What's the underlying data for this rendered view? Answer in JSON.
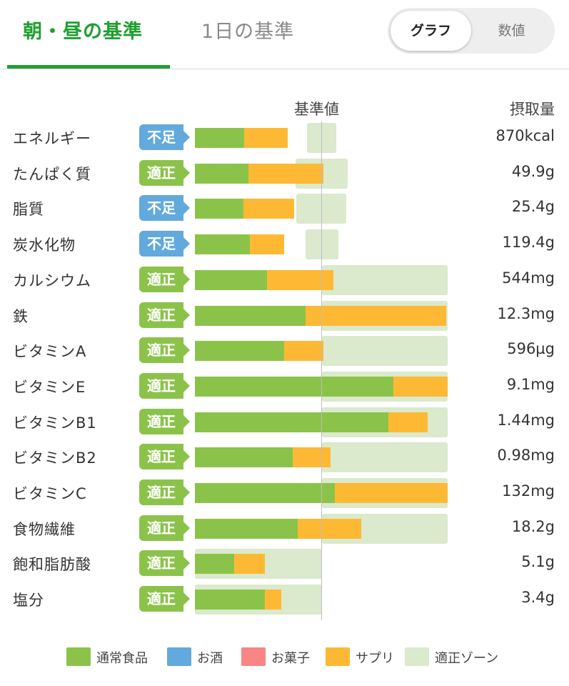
{
  "tabs": [
    {
      "label": "朝・昼の基準",
      "active": true
    },
    {
      "label": "1日の基準",
      "active": false
    }
  ],
  "toggle": {
    "on_label": "グラフ",
    "off_label": "数値"
  },
  "header": {
    "standard_label": "基準値",
    "intake_label": "摂取量"
  },
  "colors": {
    "normal_food": "#8bc34a",
    "alcohol": "#62a9dd",
    "sweets": "#f98585",
    "supplement": "#fdb933",
    "proper_zone": "#dbe9cc",
    "badge_ok": "#8bc34a",
    "badge_low": "#62a9dd"
  },
  "chart_data": {
    "type": "bar",
    "stacked": true,
    "series": [
      {
        "name": "通常食品",
        "values": [
          0.39,
          0.42,
          0.38,
          0.43,
          0.57,
          0.87,
          0.7,
          1.56,
          1.52,
          0.77,
          1.1,
          0.81,
          0.31,
          0.55
        ]
      },
      {
        "name": "サプリ",
        "values": [
          0.34,
          0.59,
          0.4,
          0.27,
          0.52,
          1.11,
          0.31,
          0.43,
          0.31,
          0.3,
          0.89,
          0.5,
          0.24,
          0.13
        ]
      }
    ],
    "zones": [
      [
        0.88,
        1.11
      ],
      [
        0.79,
        1.2
      ],
      [
        0.8,
        1.19
      ],
      [
        0.87,
        1.13
      ],
      [
        1.0,
        2.0
      ],
      [
        1.0,
        2.0
      ],
      [
        1.0,
        2.0
      ],
      [
        1.0,
        2.0
      ],
      [
        1.0,
        2.0
      ],
      [
        1.0,
        2.0
      ],
      [
        1.0,
        2.0
      ],
      [
        1.0,
        2.0
      ],
      [
        0,
        1.0
      ],
      [
        0,
        1.0
      ]
    ],
    "legend": [
      "通常食品",
      "お酒",
      "お菓子",
      "サプリ",
      "適正ゾーン"
    ],
    "legend_position": "bottom"
  },
  "nutrients": [
    {
      "name": "エネルギー",
      "status": "不足",
      "status_type": "low",
      "value": "870kcal"
    },
    {
      "name": "たんぱく質",
      "status": "適正",
      "status_type": "ok",
      "value": "49.9g"
    },
    {
      "name": "脂質",
      "status": "不足",
      "status_type": "low",
      "value": "25.4g"
    },
    {
      "name": "炭水化物",
      "status": "不足",
      "status_type": "low",
      "value": "119.4g"
    },
    {
      "name": "カルシウム",
      "status": "適正",
      "status_type": "ok",
      "value": "544mg"
    },
    {
      "name": "鉄",
      "status": "適正",
      "status_type": "ok",
      "value": "12.3mg"
    },
    {
      "name": "ビタミンA",
      "status": "適正",
      "status_type": "ok",
      "value": "596µg"
    },
    {
      "name": "ビタミンE",
      "status": "適正",
      "status_type": "ok",
      "value": "9.1mg"
    },
    {
      "name": "ビタミンB1",
      "status": "適正",
      "status_type": "ok",
      "value": "1.44mg"
    },
    {
      "name": "ビタミンB2",
      "status": "適正",
      "status_type": "ok",
      "value": "0.98mg"
    },
    {
      "name": "ビタミンC",
      "status": "適正",
      "status_type": "ok",
      "value": "132mg"
    },
    {
      "name": "食物繊維",
      "status": "適正",
      "status_type": "ok",
      "value": "18.2g"
    },
    {
      "name": "飽和脂肪酸",
      "status": "適正",
      "status_type": "ok",
      "value": "5.1g"
    },
    {
      "name": "塩分",
      "status": "適正",
      "status_type": "ok",
      "value": "3.4g"
    }
  ],
  "legend": [
    {
      "label": "通常食品",
      "color": "#8bc34a"
    },
    {
      "label": "お酒",
      "color": "#62a9dd"
    },
    {
      "label": "お菓子",
      "color": "#f98585"
    },
    {
      "label": "サプリ",
      "color": "#fdb933"
    },
    {
      "label": "適正ゾーン",
      "color": "#dbe9cc"
    }
  ]
}
